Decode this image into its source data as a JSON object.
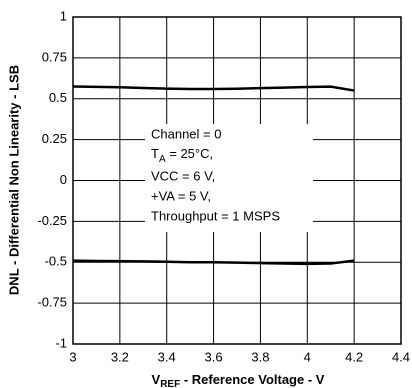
{
  "chart_data": {
    "type": "line",
    "xlabel": {
      "main": "V",
      "sub": "REF",
      "rest": " - Reference Voltage - V"
    },
    "ylabel": "DNL - Differential Non Linearity - LSB",
    "annotation": {
      "line1": "Channel = 0",
      "line2": {
        "main": "T",
        "sub": "A",
        "rest": " = 25°C,"
      },
      "line3": "VCC = 6 V,",
      "line4": "+VA = 5 V,",
      "line5": "Throughput = 1 MSPS"
    },
    "x": [
      3,
      3.1,
      3.2,
      3.3,
      3.4,
      3.5,
      3.6,
      3.7,
      3.8,
      3.9,
      4,
      4.1,
      4.2
    ],
    "series": [
      {
        "color": "#000000",
        "values": [
          0.575,
          0.573,
          0.57,
          0.566,
          0.562,
          0.56,
          0.56,
          0.561,
          0.565,
          0.568,
          0.572,
          0.574,
          0.55
        ]
      },
      {
        "color": "#000000",
        "values": [
          -0.49,
          -0.492,
          -0.493,
          -0.495,
          -0.497,
          -0.5,
          -0.5,
          -0.502,
          -0.505,
          -0.508,
          -0.51,
          -0.508,
          -0.49
        ]
      }
    ],
    "xlim": [
      3,
      4.4
    ],
    "xticks": [
      3,
      3.2,
      3.4,
      3.6,
      3.8,
      4,
      4.2,
      4.4
    ],
    "ylim": [
      -1,
      1
    ],
    "yticks": [
      1,
      0.75,
      0.5,
      0.25,
      0,
      -0.25,
      -0.5,
      -0.75,
      -1
    ],
    "grid": true
  }
}
